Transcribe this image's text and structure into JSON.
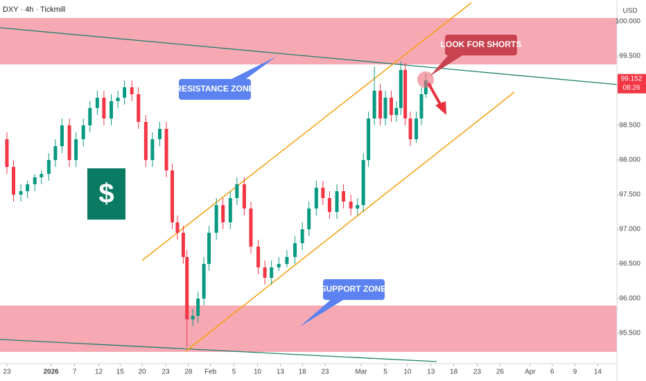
{
  "chart_data": {
    "type": "candlestick",
    "title": "DXY · 4h · Tickmill",
    "currency": "USD",
    "up_color": "#089981",
    "down_color": "#f23645",
    "last_price": 99.152,
    "countdown": "08:26",
    "annotations": [
      "RESISTANCE ZONE",
      "SUPPORT ZONE",
      "LOOK FOR SHORTS"
    ],
    "icon_text": "$",
    "xlim": [
      -0.94,
      83.0
    ],
    "ylim": [
      95.06,
      100.31
    ],
    "yticks": [
      {
        "value": 95.5,
        "label": "95.500"
      },
      {
        "value": 96.0,
        "label": "96.000"
      },
      {
        "value": 96.5,
        "label": "96.500"
      },
      {
        "value": 97.0,
        "label": "97.000"
      },
      {
        "value": 97.5,
        "label": "97.500"
      },
      {
        "value": 98.0,
        "label": "98.000"
      },
      {
        "value": 98.5,
        "label": "98.500"
      },
      {
        "value": 99.5,
        "label": "99.500"
      },
      {
        "value": 100.0,
        "label": "100.000"
      }
    ],
    "xticks": [
      {
        "value": 0,
        "label": "23"
      },
      {
        "value": 6.0,
        "label": "2026"
      },
      {
        "value": 9.2,
        "label": "7"
      },
      {
        "value": 12.5,
        "label": "12"
      },
      {
        "value": 15.4,
        "label": "15"
      },
      {
        "value": 18.4,
        "label": "20"
      },
      {
        "value": 21.6,
        "label": "23"
      },
      {
        "value": 24.7,
        "label": "28"
      },
      {
        "value": 27.7,
        "label": "Feb"
      },
      {
        "value": 30.9,
        "label": "5"
      },
      {
        "value": 34.1,
        "label": "10"
      },
      {
        "value": 37.2,
        "label": "13"
      },
      {
        "value": 40.2,
        "label": "18"
      },
      {
        "value": 43.3,
        "label": "23"
      },
      {
        "value": 48.2,
        "label": "Mar"
      },
      {
        "value": 51.5,
        "label": "5"
      },
      {
        "value": 54.5,
        "label": "10"
      },
      {
        "value": 57.7,
        "label": "13"
      },
      {
        "value": 60.8,
        "label": "18"
      },
      {
        "value": 64.0,
        "label": "23"
      },
      {
        "value": 67.1,
        "label": "26"
      },
      {
        "value": 71.2,
        "label": "Apr"
      },
      {
        "value": 74.2,
        "label": "6"
      },
      {
        "value": 77.3,
        "label": "9"
      },
      {
        "value": 80.4,
        "label": "14"
      }
    ],
    "x": [
      0.0,
      0.9,
      1.9,
      2.8,
      3.8,
      4.7,
      5.7,
      6.6,
      7.5,
      8.5,
      9.4,
      10.4,
      11.3,
      12.3,
      13.2,
      14.2,
      15.1,
      16.0,
      17.0,
      17.9,
      18.9,
      19.8,
      20.8,
      21.7,
      22.5,
      23.2,
      24.0,
      24.5,
      25.3,
      26.0,
      26.8,
      27.5,
      28.5,
      29.4,
      30.4,
      31.3,
      32.3,
      33.2,
      34.2,
      35.1,
      36.0,
      37.0,
      38.1,
      39.2,
      40.2,
      41.1,
      42.1,
      43.0,
      43.9,
      44.9,
      45.8,
      46.8,
      47.7,
      48.5,
      49.2,
      50.0,
      50.8,
      51.5,
      52.3,
      53.0,
      53.6,
      54.2,
      54.9,
      55.7,
      56.4,
      57.0
    ],
    "open": [
      98.3,
      97.9,
      97.5,
      97.55,
      97.65,
      97.75,
      97.8,
      98.0,
      98.2,
      98.5,
      98.0,
      98.3,
      98.5,
      98.75,
      98.9,
      98.6,
      98.85,
      98.9,
      99.05,
      98.95,
      98.55,
      98.0,
      98.3,
      98.45,
      97.85,
      97.1,
      96.95,
      96.6,
      95.7,
      95.75,
      96.0,
      96.5,
      96.95,
      97.35,
      97.1,
      97.45,
      97.65,
      97.3,
      96.75,
      96.45,
      96.3,
      96.45,
      96.5,
      96.6,
      96.8,
      97.0,
      97.3,
      97.6,
      97.45,
      97.25,
      97.55,
      97.4,
      97.3,
      97.35,
      98.0,
      98.6,
      99.0,
      98.6,
      98.9,
      98.65,
      98.75,
      99.3,
      98.6,
      98.3,
      98.6,
      98.95
    ],
    "high": [
      98.4,
      98.0,
      97.65,
      97.7,
      97.8,
      97.85,
      98.1,
      98.3,
      98.6,
      98.6,
      98.4,
      98.6,
      98.85,
      99.0,
      99.0,
      98.95,
      99.0,
      99.15,
      99.15,
      99.05,
      98.65,
      98.4,
      98.55,
      98.55,
      97.95,
      97.2,
      97.05,
      96.7,
      95.85,
      96.1,
      96.6,
      97.05,
      97.45,
      97.45,
      97.55,
      97.75,
      97.75,
      97.4,
      96.85,
      96.55,
      96.55,
      96.6,
      96.7,
      96.9,
      97.1,
      97.4,
      97.7,
      97.7,
      97.55,
      97.65,
      97.65,
      97.5,
      97.45,
      98.1,
      98.7,
      99.35,
      99.1,
      99.0,
      99.0,
      98.85,
      99.42,
      99.4,
      98.7,
      98.7,
      99.05,
      99.25
    ],
    "low": [
      97.8,
      97.4,
      97.4,
      97.45,
      97.55,
      97.65,
      97.7,
      97.9,
      98.1,
      97.9,
      97.9,
      98.2,
      98.4,
      98.65,
      98.5,
      98.5,
      98.75,
      98.8,
      98.85,
      98.45,
      97.9,
      97.9,
      98.2,
      97.75,
      97.0,
      96.85,
      96.5,
      95.3,
      95.6,
      95.65,
      95.9,
      96.4,
      96.85,
      97.0,
      97.0,
      97.35,
      97.2,
      96.65,
      96.35,
      96.2,
      96.2,
      96.4,
      96.45,
      96.5,
      96.7,
      96.9,
      97.2,
      97.35,
      97.15,
      97.15,
      97.3,
      97.2,
      97.2,
      97.25,
      97.9,
      98.5,
      98.5,
      98.5,
      98.55,
      98.55,
      98.65,
      98.5,
      98.2,
      98.25,
      98.5,
      98.9
    ],
    "close": [
      97.9,
      97.5,
      97.55,
      97.65,
      97.75,
      97.8,
      98.0,
      98.2,
      98.5,
      98.0,
      98.3,
      98.5,
      98.75,
      98.9,
      98.6,
      98.85,
      98.9,
      99.05,
      98.95,
      98.55,
      98.0,
      98.3,
      98.45,
      97.85,
      97.1,
      96.95,
      96.6,
      95.7,
      95.75,
      96.0,
      96.5,
      96.95,
      97.35,
      97.1,
      97.45,
      97.65,
      97.3,
      96.75,
      96.45,
      96.3,
      96.45,
      96.5,
      96.6,
      96.8,
      97.0,
      97.3,
      97.6,
      97.45,
      97.25,
      97.55,
      97.4,
      97.3,
      97.35,
      98.0,
      98.6,
      99.0,
      98.6,
      98.9,
      98.65,
      98.75,
      99.3,
      98.6,
      98.3,
      98.6,
      98.95,
      99.15
    ]
  }
}
